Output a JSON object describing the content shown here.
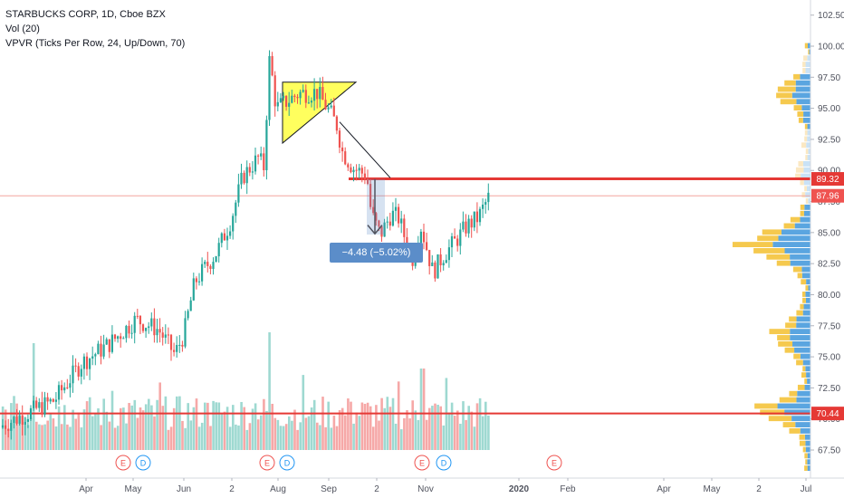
{
  "legend": {
    "symbol_line": "STARBUCKS CORP, 1D, Cboe BZX",
    "volume_line": "Vol (20)",
    "vpvr_line": "VPVR (Ticks Per Row, 24, Up/Down, 70)"
  },
  "measure_label": "−4.48 (−5.02%) −4.48",
  "price_labels": {
    "resistance": "89.32",
    "current": "87.96",
    "support": "70.44"
  },
  "colors": {
    "up": "#26a69a",
    "down": "#ef5350",
    "vol_up": "#9ed9d1",
    "vol_down": "#f6a8a7",
    "vpvr_up": "#5aa5e0",
    "vpvr_down": "#f5c94e",
    "line_red": "#e53935",
    "triangle_fill": "#ffff4d",
    "measure_label_bg": "#5b8dc9"
  },
  "chart_data": {
    "type": "candlestick",
    "title": "STARBUCKS CORP, 1D, Cboe BZX",
    "y_axis": {
      "ticks": [
        "102.50",
        "100.00",
        "97.50",
        "95.00",
        "92.50",
        "90.00",
        "87.50",
        "85.00",
        "82.50",
        "80.00",
        "77.50",
        "75.00",
        "72.50",
        "70.00",
        "67.50"
      ],
      "range": [
        66.0,
        103.5
      ]
    },
    "x_axis": {
      "ticks": [
        "Apr",
        "May",
        "Jun",
        "2",
        "Aug",
        "Sep",
        "2",
        "Nov",
        "2020",
        "Feb",
        "Apr",
        "May",
        "2",
        "Jul"
      ]
    },
    "price_path": [
      [
        "Mar-2019",
        69.5
      ],
      [
        "Apr-2019",
        74.0
      ],
      [
        "May-2019",
        77.5
      ],
      [
        "Jun-2019",
        81.5
      ],
      [
        "Jul-2019",
        91.0
      ],
      [
        "Jul-2019-end",
        99.5
      ],
      [
        "Aug-2019",
        95.5
      ],
      [
        "Sep-2019",
        91.0
      ],
      [
        "Oct-2019",
        84.5
      ],
      [
        "Nov-2019",
        82.0
      ],
      [
        "Dec-2019",
        87.96
      ]
    ],
    "horizontal_lines": [
      89.32,
      87.96,
      70.44
    ],
    "event_markers": [
      "E",
      "D",
      "E",
      "D",
      "E",
      "D",
      "E"
    ],
    "indicators": [
      "Vol (20)",
      "VPVR (Ticks Per Row, 24, Up/Down, 70)"
    ]
  }
}
